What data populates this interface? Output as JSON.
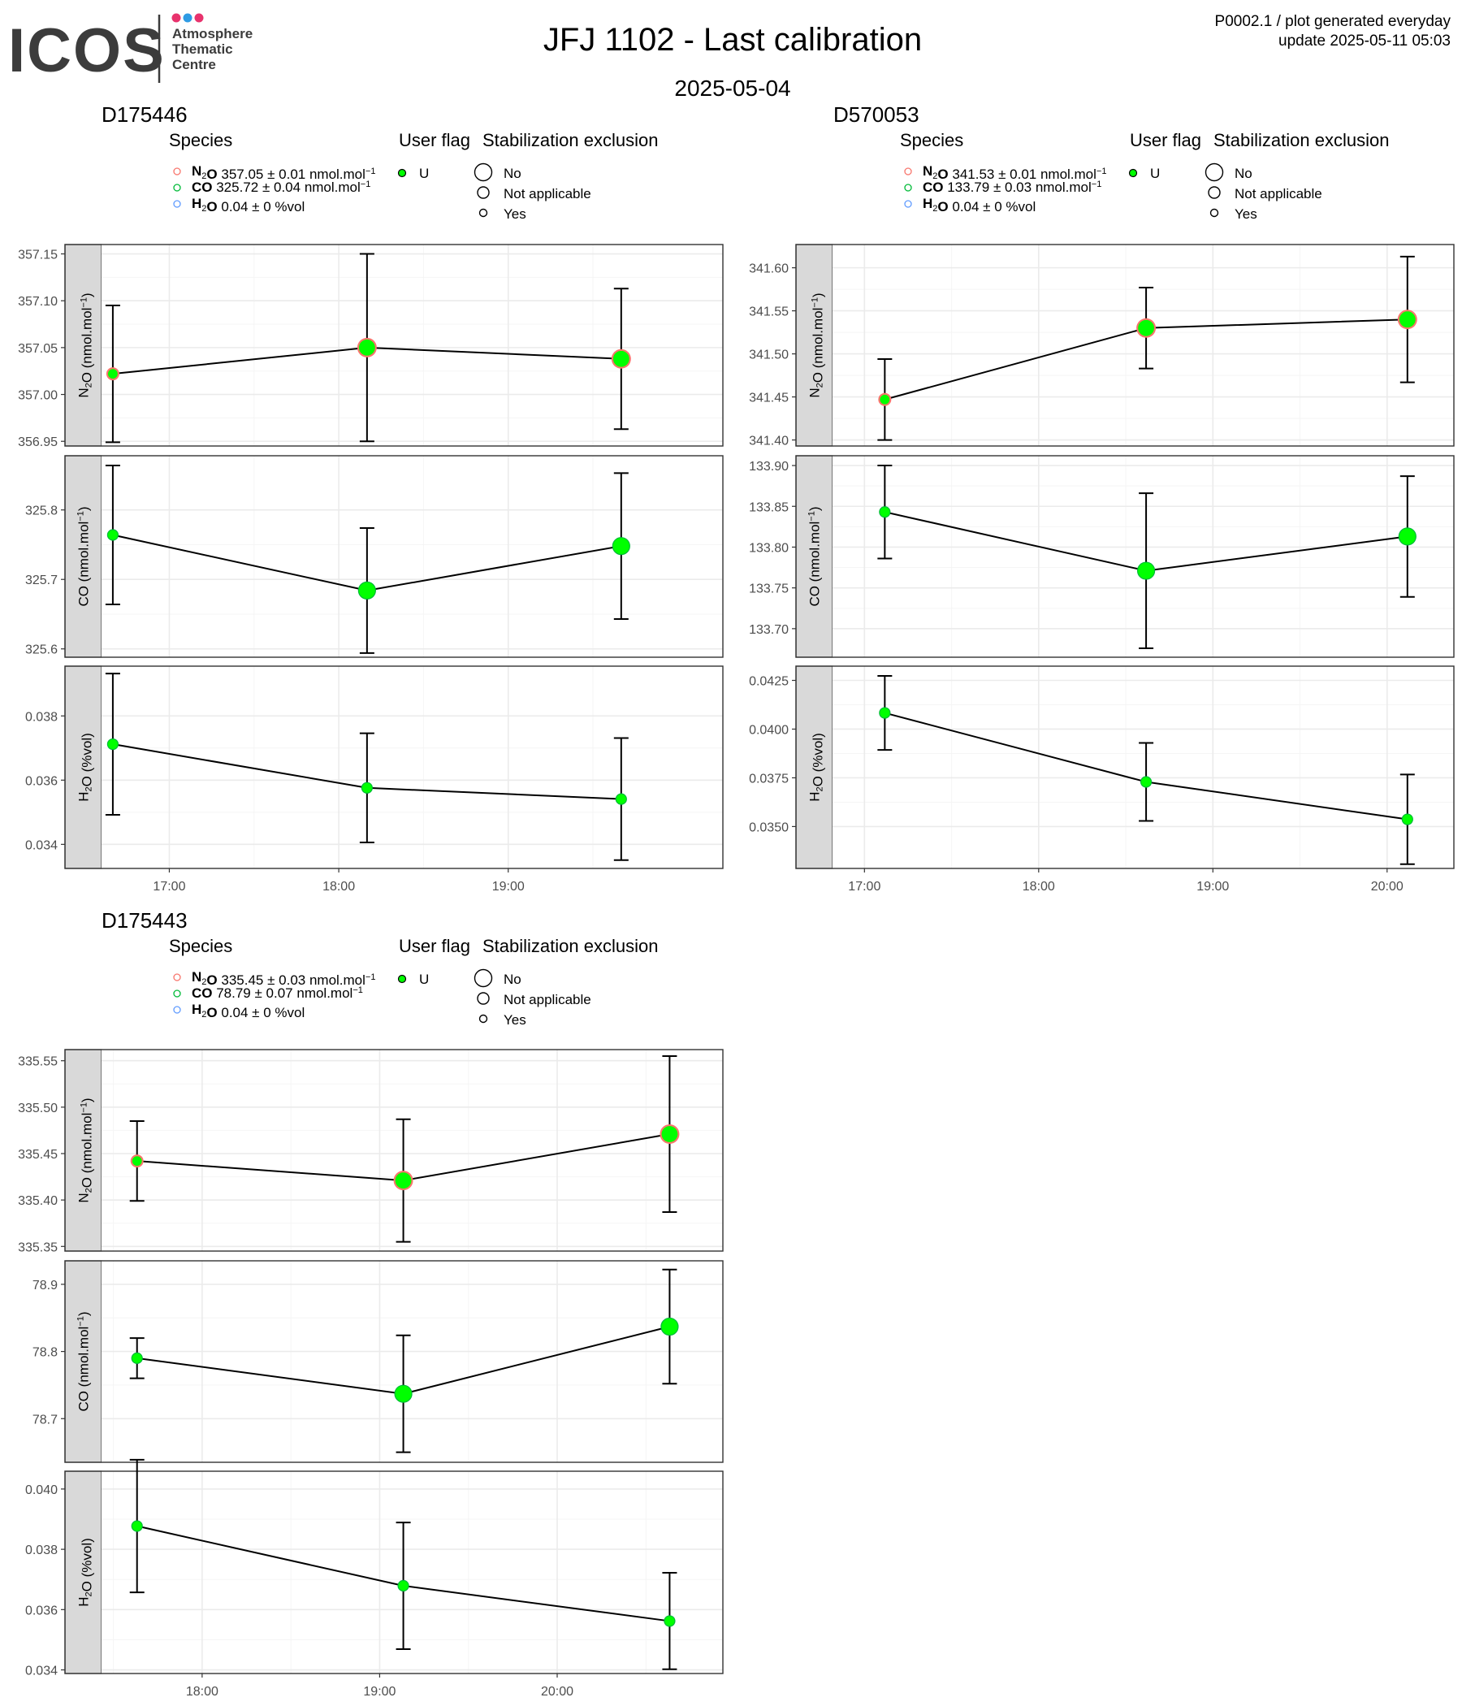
{
  "logo": {
    "text": "ICOS",
    "subtitle_lines": [
      "Atmosphere",
      "Thematic",
      "Centre"
    ],
    "dot_colors": [
      "#e8336d",
      "#2e9be4",
      "#e8336d"
    ]
  },
  "header": {
    "title": "JFJ 1102 - Last calibration",
    "date": "2025-05-04",
    "product_line": "P0002.1 / plot generated everyday",
    "update_line": "update  2025-05-11 05:03"
  },
  "legend": {
    "species_title": "Species",
    "user_flag_title": "User flag",
    "stab_title": "Stabilization exclusion",
    "user_flag_value": "U",
    "stab_items": [
      "No",
      "Not applicable",
      "Yes"
    ]
  },
  "colors": {
    "n2o": "#f8766d",
    "co": "#00ba38",
    "h2o": "#619cff",
    "point_fill": "#00ff00",
    "panel_strip": "#d9d9d9",
    "grid_major": "#ebebeb",
    "grid_minor": "#f5f5f5"
  },
  "chart_data": [
    {
      "type": "line",
      "cylinder": "D175446",
      "legend_species": [
        {
          "name": "N2O",
          "value": "357.05",
          "unc": "0.01",
          "unit": "nmol.mol-1"
        },
        {
          "name": "CO",
          "value": "325.72",
          "unc": "0.04",
          "unit": "nmol.mol-1"
        },
        {
          "name": "H2O",
          "value": "0.04",
          "unc": "0",
          "unit": "%vol"
        }
      ],
      "x_ticks": [
        "17:00",
        "18:00",
        "19:00"
      ],
      "x_range": [
        "16:36",
        "20:16"
      ],
      "x": [
        "16:40",
        "18:10",
        "19:40"
      ],
      "panels": [
        {
          "ylabel": "N2O (nmol.mol-1)",
          "ylim": [
            356.945,
            357.16
          ],
          "ticks": [
            "356.95",
            "357.00",
            "357.05",
            "357.10",
            "357.15"
          ],
          "tick_values": [
            356.95,
            357.0,
            357.05,
            357.1,
            357.15
          ],
          "y": [
            357.022,
            357.05,
            357.038
          ],
          "err": [
            0.073,
            0.1,
            0.075
          ],
          "stab": [
            "Yes",
            "No",
            "No"
          ]
        },
        {
          "ylabel": "CO (nmol.mol-1)",
          "ylim": [
            325.588,
            325.878
          ],
          "ticks": [
            "325.6",
            "325.7",
            "325.8"
          ],
          "tick_values": [
            325.6,
            325.7,
            325.8
          ],
          "y": [
            325.764,
            325.684,
            325.748
          ],
          "err": [
            0.1,
            0.09,
            0.105
          ],
          "stab": [
            "Yes",
            "No",
            "No"
          ]
        },
        {
          "ylabel": "H2O (%vol)",
          "ylim": [
            0.03325,
            0.03955
          ],
          "ticks": [
            "0.034",
            "0.036",
            "0.038"
          ],
          "tick_values": [
            0.034,
            0.036,
            0.038
          ],
          "y": [
            0.03712,
            0.03576,
            0.03541
          ],
          "err": [
            0.0022,
            0.0017,
            0.0019
          ],
          "stab": [
            "Yes",
            "Yes",
            "Yes"
          ]
        }
      ]
    },
    {
      "type": "line",
      "cylinder": "D570053",
      "legend_species": [
        {
          "name": "N2O",
          "value": "341.53",
          "unc": "0.01",
          "unit": "nmol.mol-1"
        },
        {
          "name": "CO",
          "value": "133.79",
          "unc": "0.03",
          "unit": "nmol.mol-1"
        },
        {
          "name": "H2O",
          "value": "0.04",
          "unc": "0",
          "unit": "%vol"
        }
      ],
      "x_ticks": [
        "17:00",
        "18:00",
        "19:00",
        "20:00"
      ],
      "x_range": [
        "16:49",
        "20:23"
      ],
      "x": [
        "17:07",
        "18:37",
        "20:07"
      ],
      "panels": [
        {
          "ylabel": "N2O (nmol.mol-1)",
          "ylim": [
            341.393,
            341.627
          ],
          "ticks": [
            "341.40",
            "341.45",
            "341.50",
            "341.55",
            "341.60"
          ],
          "tick_values": [
            341.4,
            341.45,
            341.5,
            341.55,
            341.6
          ],
          "y": [
            341.447,
            341.53,
            341.54
          ],
          "err": [
            0.047,
            0.047,
            0.073
          ],
          "stab": [
            "Yes",
            "No",
            "No"
          ]
        },
        {
          "ylabel": "CO (nmol.mol-1)",
          "ylim": [
            133.665,
            133.912
          ],
          "ticks": [
            "133.70",
            "133.75",
            "133.80",
            "133.85",
            "133.90"
          ],
          "tick_values": [
            133.7,
            133.75,
            133.8,
            133.85,
            133.9
          ],
          "y": [
            133.843,
            133.771,
            133.813
          ],
          "err": [
            0.057,
            0.095,
            0.074
          ],
          "stab": [
            "Yes",
            "No",
            "No"
          ]
        },
        {
          "ylabel": "H2O (%vol)",
          "ylim": [
            0.03285,
            0.04323
          ],
          "ticks": [
            "0.0350",
            "0.0375",
            "0.0400",
            "0.0425"
          ],
          "tick_values": [
            0.035,
            0.0375,
            0.04,
            0.0425
          ],
          "y": [
            0.04083,
            0.03729,
            0.03537
          ],
          "err": [
            0.0019,
            0.002,
            0.0023
          ],
          "stab": [
            "Yes",
            "Yes",
            "Yes"
          ]
        }
      ]
    },
    {
      "type": "line",
      "cylinder": "D175443",
      "legend_species": [
        {
          "name": "N2O",
          "value": "335.45",
          "unc": "0.03",
          "unit": "nmol.mol-1"
        },
        {
          "name": "CO",
          "value": "78.79",
          "unc": "0.07",
          "unit": "nmol.mol-1"
        },
        {
          "name": "H2O",
          "value": "0.04",
          "unc": "0",
          "unit": "%vol"
        }
      ],
      "x_ticks": [
        "18:00",
        "19:00",
        "20:00"
      ],
      "x_range": [
        "17:26",
        "20:56"
      ],
      "x": [
        "17:38",
        "19:08",
        "20:38"
      ],
      "panels": [
        {
          "ylabel": "N2O (nmol.mol-1)",
          "ylim": [
            335.345,
            335.562
          ],
          "ticks": [
            "335.35",
            "335.40",
            "335.45",
            "335.50",
            "335.55"
          ],
          "tick_values": [
            335.35,
            335.4,
            335.45,
            335.5,
            335.55
          ],
          "y": [
            335.442,
            335.421,
            335.471
          ],
          "err": [
            0.043,
            0.066,
            0.084
          ],
          "stab": [
            "Yes",
            "No",
            "No"
          ]
        },
        {
          "ylabel": "CO (nmol.mol-1)",
          "ylim": [
            78.635,
            78.935
          ],
          "ticks": [
            "78.7",
            "78.8",
            "78.9"
          ],
          "tick_values": [
            78.7,
            78.8,
            78.9
          ],
          "y": [
            78.79,
            78.737,
            78.837
          ],
          "err": [
            0.03,
            0.087,
            0.085
          ],
          "stab": [
            "Yes",
            "No",
            "No"
          ]
        },
        {
          "ylabel": "H2O (%vol)",
          "ylim": [
            0.03388,
            0.04059
          ],
          "ticks": [
            "0.034",
            "0.036",
            "0.038",
            "0.040"
          ],
          "tick_values": [
            0.034,
            0.036,
            0.038,
            0.04
          ],
          "y": [
            0.03877,
            0.03679,
            0.03562
          ],
          "err": [
            0.0022,
            0.0021,
            0.0016
          ],
          "stab": [
            "Yes",
            "Yes",
            "Yes"
          ]
        }
      ]
    }
  ]
}
